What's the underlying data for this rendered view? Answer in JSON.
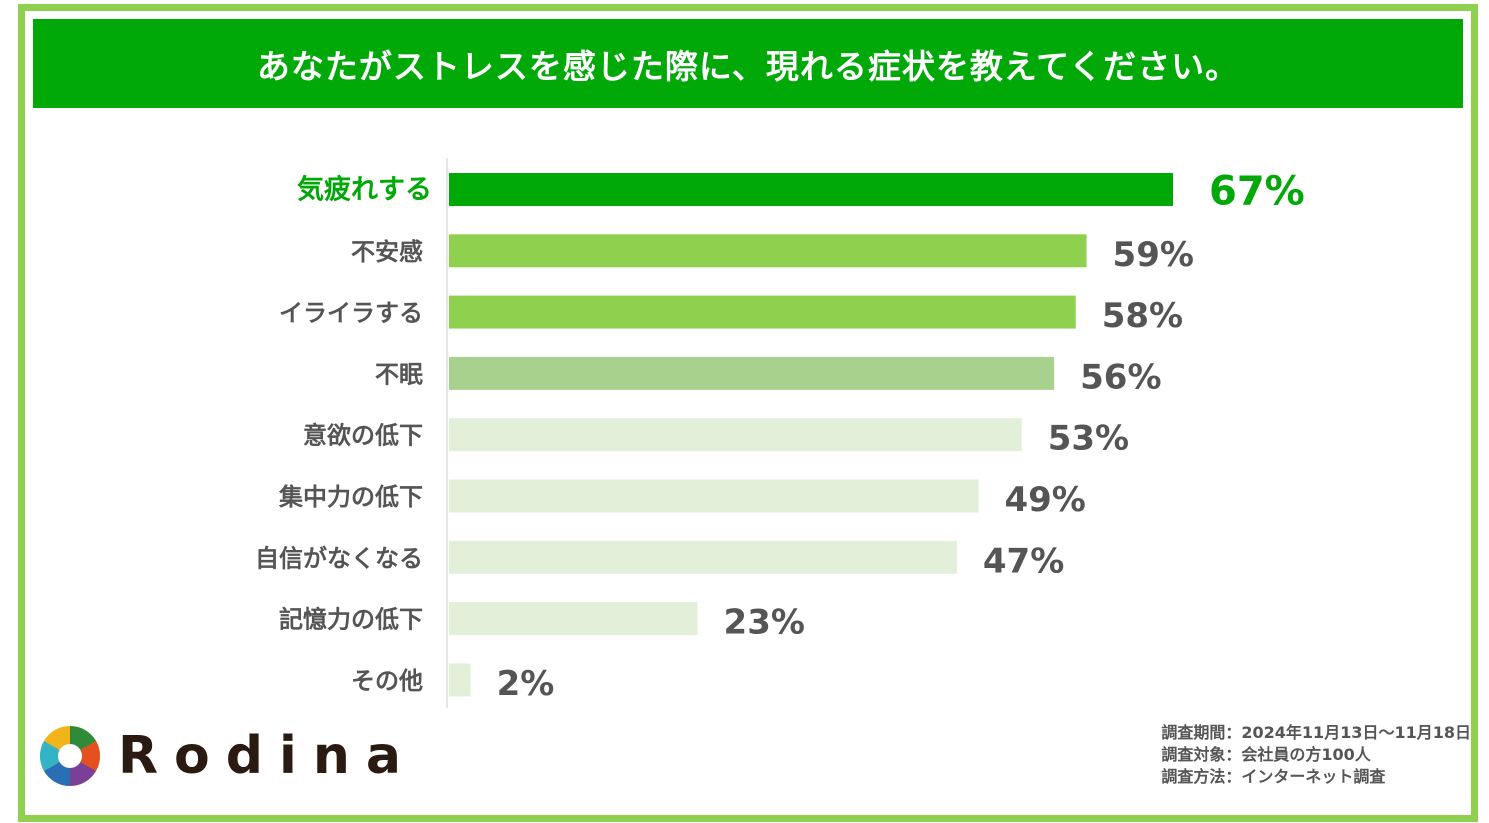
{
  "header": {
    "title": "あなたがストレスを感じた際に、現れる症状を教えてください。"
  },
  "chart_data": {
    "type": "bar",
    "orientation": "horizontal",
    "categories": [
      "気疲れする",
      "不安感",
      "イライラする",
      "不眠",
      "意欲の低下",
      "集中力の低下",
      "自信がなくなる",
      "記憶力の低下",
      "その他"
    ],
    "values": [
      67,
      59,
      58,
      56,
      53,
      49,
      47,
      23,
      2
    ],
    "value_labels": [
      "67%",
      "59%",
      "58%",
      "56%",
      "53%",
      "49%",
      "47%",
      "23%",
      "2%"
    ],
    "bar_colors": [
      "#00a808",
      "#8fd14f",
      "#8fd14f",
      "#a9d18e",
      "#e2efd9",
      "#e2efd9",
      "#e2efd9",
      "#e2efd9",
      "#e2efd9"
    ],
    "label_colors": [
      "#00a808",
      "#555555",
      "#555555",
      "#555555",
      "#555555",
      "#555555",
      "#555555",
      "#555555",
      "#555555"
    ],
    "xlim": [
      0,
      67
    ],
    "grid": false,
    "legend": "none"
  },
  "logo": {
    "text": "Rodina"
  },
  "notes": {
    "period": "調査期間：2024年11月13日～11月18日",
    "target": "調査対象：会社員の方100人",
    "method": "調査方法：インターネット調査"
  }
}
